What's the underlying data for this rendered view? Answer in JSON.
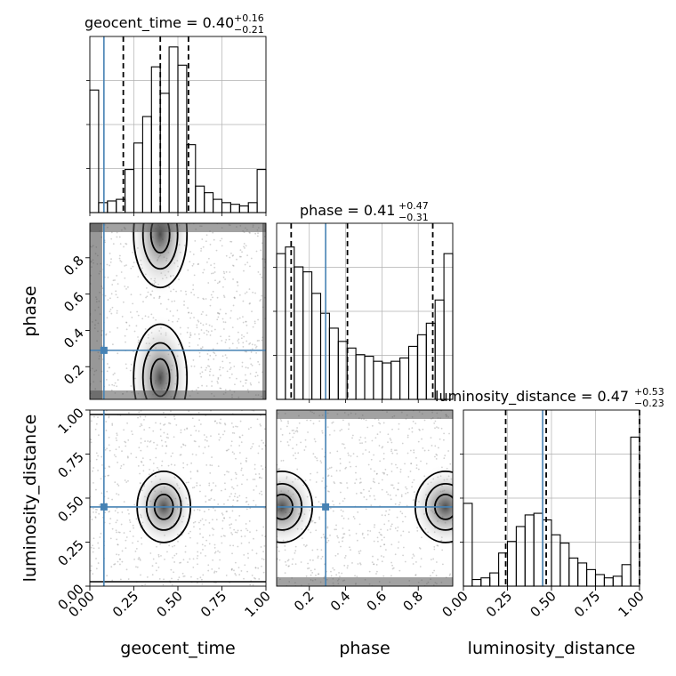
{
  "colors": {
    "truth": "#4682b4",
    "line": "#000000",
    "grid": "#b0b0b0",
    "points": "#9a9a9a"
  },
  "titles": {
    "geocent_time": {
      "prefix": "geocent_time = 0.40",
      "sup": "+0.16",
      "sub": "−0.21"
    },
    "phase": {
      "prefix": "phase = 0.41",
      "sup": "+0.47",
      "sub": "−0.31"
    },
    "luminosity_distance": {
      "prefix": "luminosity_distance = 0.47",
      "sup": "+0.53",
      "sub": "−0.23"
    }
  },
  "axis_labels": {
    "x": [
      "geocent_time",
      "phase",
      "luminosity_distance"
    ],
    "y": [
      "phase",
      "luminosity_distance"
    ]
  },
  "chart_data": {
    "type": "corner",
    "parameters": [
      "geocent_time",
      "phase",
      "luminosity_distance"
    ],
    "ranges": {
      "geocent_time": [
        0.0,
        1.0
      ],
      "phase": [
        0.02,
        0.99
      ],
      "luminosity_distance": [
        0.0,
        1.0
      ]
    },
    "truths": {
      "geocent_time": 0.08,
      "phase": 0.29,
      "luminosity_distance": 0.45
    },
    "quantiles": {
      "geocent_time": [
        0.19,
        0.4,
        0.56
      ],
      "phase": [
        0.1,
        0.41,
        0.88
      ],
      "luminosity_distance": [
        0.24,
        0.47,
        1.0
      ]
    },
    "ticks": {
      "geocent_time": {
        "values": [
          0.0,
          0.25,
          0.5,
          0.75,
          1.0
        ],
        "labels": [
          "0.00",
          "0.25",
          "0.50",
          "0.75",
          "1.00"
        ]
      },
      "phase": {
        "values": [
          0.2,
          0.4,
          0.6,
          0.8
        ],
        "labels": [
          "0.2",
          "0.4",
          "0.6",
          "0.8"
        ]
      },
      "luminosity_distance": {
        "values": [
          0.0,
          0.25,
          0.5,
          0.75,
          1.0
        ],
        "labels": [
          "0.00",
          "0.25",
          "0.50",
          "0.75",
          "1.00"
        ]
      }
    },
    "histograms": {
      "geocent_time": [
        0.74,
        0.06,
        0.07,
        0.08,
        0.26,
        0.42,
        0.58,
        0.88,
        0.72,
        1.0,
        0.89,
        0.41,
        0.16,
        0.12,
        0.08,
        0.06,
        0.05,
        0.04,
        0.06,
        0.26
      ],
      "phase": [
        0.88,
        0.92,
        0.8,
        0.77,
        0.64,
        0.52,
        0.43,
        0.35,
        0.31,
        0.27,
        0.26,
        0.23,
        0.22,
        0.23,
        0.25,
        0.32,
        0.39,
        0.46,
        0.6,
        0.88
      ],
      "luminosity_distance": [
        0.5,
        0.04,
        0.05,
        0.08,
        0.2,
        0.27,
        0.36,
        0.43,
        0.44,
        0.4,
        0.31,
        0.26,
        0.17,
        0.14,
        0.1,
        0.07,
        0.05,
        0.06,
        0.13,
        0.9
      ]
    },
    "density_modes": {
      "geocent_time_vs_phase": [
        [
          0.4,
          0.14
        ],
        [
          0.4,
          0.93
        ]
      ],
      "geocent_time_vs_luminosity_distance": [
        [
          0.42,
          0.45
        ]
      ],
      "phase_vs_luminosity_distance": [
        [
          0.05,
          0.45
        ],
        [
          0.95,
          0.45
        ]
      ]
    }
  }
}
